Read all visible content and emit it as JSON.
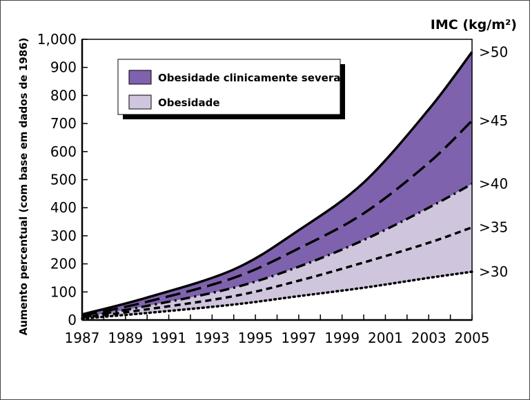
{
  "chart_data": {
    "type": "area",
    "ylabel": "Aumento percentual (com base em dados de 1986)",
    "xlabel": "",
    "xlim": [
      1987,
      2005
    ],
    "ylim": [
      0,
      1000
    ],
    "x_ticks": [
      "1987",
      "1989",
      "1991",
      "1993",
      "1995",
      "1997",
      "1999",
      "2001",
      "2003",
      "2005"
    ],
    "y_ticks": [
      "0",
      "100",
      "200",
      "300",
      "400",
      "500",
      "600",
      "700",
      "800",
      "900",
      "1,000"
    ],
    "right_axis_title": "IMC (kg/m²)",
    "legend_position": "top-left",
    "legend": [
      {
        "label": "Obesidade clinicamente severa",
        "color": "#7f62ad"
      },
      {
        "label": "Obesidade",
        "color": "#cfc6de"
      }
    ],
    "x": [
      1987,
      1990,
      1994,
      1997,
      2000,
      2003,
      2005
    ],
    "series": [
      {
        "name": ">50",
        "style": "solid",
        "values": [
          20,
          80,
          180,
          320,
          490,
          750,
          955
        ]
      },
      {
        "name": ">45",
        "style": "long-dash",
        "values": [
          15,
          65,
          150,
          255,
          380,
          560,
          710
        ]
      },
      {
        "name": ">40",
        "style": "dash-dot",
        "values": [
          10,
          50,
          115,
          190,
          285,
          400,
          485
        ]
      },
      {
        "name": ">35",
        "style": "dash",
        "values": [
          8,
          38,
          85,
          140,
          205,
          275,
          330
        ]
      },
      {
        "name": ">30",
        "style": "dot",
        "values": [
          5,
          25,
          55,
          85,
          115,
          150,
          172
        ]
      }
    ],
    "fills": [
      {
        "from": ">45",
        "to": ">50",
        "color": "#7f62ad"
      },
      {
        "from": ">40",
        "to": ">45",
        "color": "#7f62ad"
      },
      {
        "from": ">35",
        "to": ">40",
        "color": "#cfc6de"
      },
      {
        "from": ">30",
        "to": ">35",
        "color": "#cfc6de"
      }
    ],
    "grid": false
  }
}
